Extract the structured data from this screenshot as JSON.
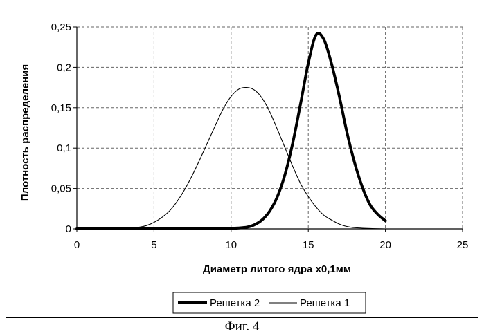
{
  "caption": "Фиг. 4",
  "chart_data": {
    "type": "line",
    "title": "",
    "xlabel": "Диаметр литого ядра x0,1мм",
    "ylabel": "Плотность распределения",
    "xlim": [
      0,
      25
    ],
    "ylim": [
      0,
      0.25
    ],
    "xticks": [
      0,
      5,
      10,
      15,
      20,
      25
    ],
    "yticks": [
      0,
      0.05,
      0.1,
      0.15,
      0.2,
      0.25
    ],
    "xtick_labels": [
      "0",
      "5",
      "10",
      "15",
      "20",
      "25"
    ],
    "ytick_labels": [
      "0",
      "0,05",
      "0,1",
      "0,15",
      "0,2",
      "0,25"
    ],
    "grid": true,
    "legend_position": "bottom",
    "series": [
      {
        "name": "Решетка 2",
        "color": "#000000",
        "line": "thick",
        "x": [
          0,
          2,
          4,
          6,
          8,
          9,
          10,
          11,
          11.5,
          12,
          12.5,
          13,
          13.5,
          14,
          14.5,
          15,
          15.5,
          16,
          16.5,
          17,
          17.5,
          18,
          18.5,
          19,
          19.5,
          20
        ],
        "y": [
          0,
          0,
          0,
          0,
          0,
          0,
          0.0005,
          0.002,
          0.005,
          0.011,
          0.022,
          0.04,
          0.068,
          0.107,
          0.155,
          0.205,
          0.24,
          0.235,
          0.205,
          0.165,
          0.12,
          0.082,
          0.052,
          0.03,
          0.018,
          0.01
        ]
      },
      {
        "name": "Решетка 1",
        "color": "#000000",
        "line": "thin",
        "x": [
          0,
          2,
          3,
          4,
          4.5,
          5,
          5.5,
          6,
          6.5,
          7,
          7.5,
          8,
          8.5,
          9,
          9.5,
          10,
          10.5,
          11,
          11.5,
          12,
          12.5,
          13,
          13.5,
          14,
          14.5,
          15,
          15.5,
          16,
          16.5,
          17,
          17.5,
          18,
          19,
          20
        ],
        "y": [
          0,
          0,
          0.0005,
          0.002,
          0.004,
          0.008,
          0.014,
          0.022,
          0.034,
          0.049,
          0.067,
          0.087,
          0.108,
          0.129,
          0.149,
          0.164,
          0.173,
          0.175,
          0.172,
          0.162,
          0.145,
          0.123,
          0.1,
          0.077,
          0.056,
          0.04,
          0.027,
          0.017,
          0.011,
          0.006,
          0.003,
          0.0015,
          0.0005,
          0
        ]
      }
    ]
  }
}
